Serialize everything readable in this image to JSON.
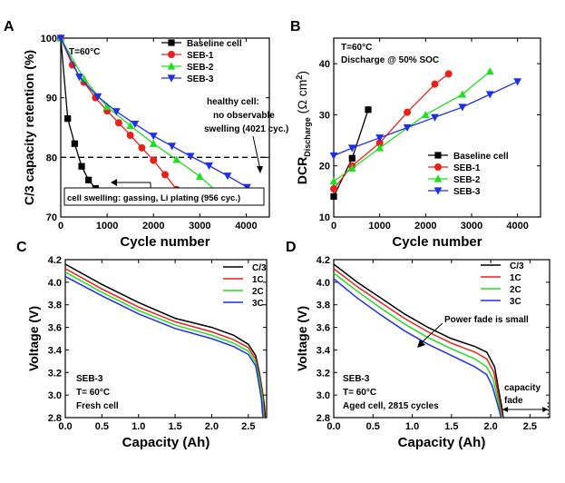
{
  "chart_data": [
    {
      "panel": "A",
      "type": "line",
      "xlabel": "Cycle number",
      "ylabel": "C/3 capacity retention (%)",
      "xlim": [
        0,
        4500
      ],
      "ylim": [
        70,
        100
      ],
      "xticks": [
        0,
        1000,
        2000,
        3000,
        4000
      ],
      "yticks": [
        70,
        80,
        90,
        100
      ],
      "reference_line": 80,
      "legend_position": "top-right",
      "annotations": [
        "T=60°C",
        "healthy cell:",
        "no observable",
        "swelling (4021 cyc.)",
        "cell swelling: gassing, Li plating (956 cyc.)"
      ],
      "series": [
        {
          "name": "Baseline cell",
          "color": "#000000",
          "marker": "square",
          "x": [
            0,
            150,
            300,
            450,
            600,
            750,
            900,
            956
          ],
          "y": [
            100,
            86.5,
            82.3,
            78.5,
            76.2,
            74.8,
            74.0,
            74.0
          ]
        },
        {
          "name": "SEB-1",
          "color": "#e8211b",
          "marker": "circle",
          "x": [
            0,
            250,
            500,
            750,
            1000,
            1250,
            1500,
            1750,
            2000,
            2250,
            2500
          ],
          "y": [
            100,
            95.5,
            92.6,
            90,
            87.8,
            85.8,
            83.7,
            81.6,
            79.5,
            77.1,
            74.6
          ]
        },
        {
          "name": "SEB-2",
          "color": "#22dd22",
          "marker": "triangle-up",
          "x": [
            0,
            500,
            1000,
            1500,
            2000,
            2500,
            3000,
            3400
          ],
          "y": [
            100,
            93.2,
            88.5,
            85.3,
            82.3,
            79.6,
            76.8,
            74.0
          ]
        },
        {
          "name": "SEB-3",
          "color": "#1f2fe6",
          "marker": "triangle-down",
          "x": [
            0,
            400,
            800,
            1200,
            1600,
            2000,
            2400,
            2800,
            3200,
            3600,
            4021
          ],
          "y": [
            100,
            93.5,
            90.2,
            87.7,
            85.6,
            83.6,
            81.9,
            80.2,
            78.6,
            76.9,
            75.0
          ]
        }
      ]
    },
    {
      "panel": "B",
      "type": "line",
      "xlabel": "Cycle number",
      "ylabel_main": "DCR",
      "ylabel_sub": "Discharge",
      "ylabel_unit": "(Ω cm",
      "ylabel_sup": "2",
      "ylabel_close": ")",
      "xlim": [
        0,
        4500
      ],
      "ylim": [
        10,
        45
      ],
      "xticks": [
        0,
        1000,
        2000,
        3000,
        4000
      ],
      "yticks": [
        10,
        20,
        30,
        40
      ],
      "legend_position": "bottom-right",
      "annotations": [
        "T=60°C",
        "Discharge @ 50% SOC"
      ],
      "series": [
        {
          "name": "Baseline cell",
          "color": "#000000",
          "marker": "square",
          "x": [
            0,
            400,
            750
          ],
          "y": [
            14,
            21.5,
            31
          ]
        },
        {
          "name": "SEB-1",
          "color": "#e8211b",
          "marker": "circle",
          "x": [
            0,
            400,
            1000,
            1600,
            2200,
            2500
          ],
          "y": [
            15.5,
            20,
            24.5,
            30.5,
            36,
            38
          ]
        },
        {
          "name": "SEB-2",
          "color": "#22dd22",
          "marker": "triangle-up",
          "x": [
            0,
            400,
            1000,
            2000,
            2800,
            3400
          ],
          "y": [
            17,
            19.5,
            23.5,
            30,
            34,
            38.5
          ]
        },
        {
          "name": "SEB-3",
          "color": "#1f2fe6",
          "marker": "triangle-down",
          "x": [
            0,
            400,
            1000,
            1600,
            2200,
            2800,
            3400,
            4000
          ],
          "y": [
            22,
            23.5,
            25.5,
            27.5,
            29.5,
            31.5,
            34,
            36.5
          ]
        }
      ]
    },
    {
      "panel": "C",
      "type": "line",
      "xlabel": "Capacity (Ah)",
      "ylabel": "Voltage (V)",
      "xlim": [
        0,
        2.75
      ],
      "ylim": [
        2.8,
        4.2
      ],
      "xticks": [
        0.0,
        0.5,
        1.0,
        1.5,
        2.0,
        2.5
      ],
      "xtick_labels": [
        "0.0",
        "0.5",
        "1.0",
        "1.5",
        "2.0",
        "2.5"
      ],
      "yticks": [
        2.8,
        3.0,
        3.2,
        3.4,
        3.6,
        3.8,
        4.0,
        4.2
      ],
      "ytick_labels": [
        "2.8",
        "3.0",
        "3.2",
        "3.4",
        "3.6",
        "3.8",
        "4.0",
        "4.2"
      ],
      "legend_position": "top-right",
      "annotations": [
        "SEB-3",
        "T= 60°C",
        "Fresh cell"
      ],
      "series": [
        {
          "name": "C/3",
          "color": "#000000",
          "x": [
            0,
            0.5,
            1.0,
            1.5,
            2.0,
            2.3,
            2.5,
            2.6,
            2.65,
            2.7,
            2.72,
            2.73
          ],
          "y": [
            4.16,
            3.98,
            3.82,
            3.68,
            3.6,
            3.53,
            3.45,
            3.35,
            3.2,
            3.0,
            2.9,
            2.8
          ]
        },
        {
          "name": "1C",
          "color": "#e8211b",
          "x": [
            0,
            0.5,
            1.0,
            1.5,
            2.0,
            2.3,
            2.5,
            2.6,
            2.65,
            2.7,
            2.71,
            2.72
          ],
          "y": [
            4.12,
            3.94,
            3.78,
            3.65,
            3.56,
            3.49,
            3.42,
            3.32,
            3.17,
            2.98,
            2.88,
            2.8
          ]
        },
        {
          "name": "2C",
          "color": "#22dd22",
          "x": [
            0,
            0.5,
            1.0,
            1.5,
            2.0,
            2.3,
            2.5,
            2.6,
            2.65,
            2.69,
            2.7,
            2.71
          ],
          "y": [
            4.09,
            3.91,
            3.75,
            3.62,
            3.53,
            3.46,
            3.39,
            3.29,
            3.14,
            2.97,
            2.87,
            2.8
          ]
        },
        {
          "name": "3C",
          "color": "#1f2fe6",
          "x": [
            0,
            0.5,
            1.0,
            1.5,
            2.0,
            2.3,
            2.5,
            2.6,
            2.64,
            2.68,
            2.69,
            2.7
          ],
          "y": [
            4.05,
            3.88,
            3.72,
            3.59,
            3.5,
            3.43,
            3.36,
            3.26,
            3.12,
            2.96,
            2.86,
            2.8
          ]
        }
      ]
    },
    {
      "panel": "D",
      "type": "line",
      "xlabel": "Capacity (Ah)",
      "ylabel": "Voltage (V)",
      "xlim": [
        0,
        2.75
      ],
      "ylim": [
        2.8,
        4.2
      ],
      "xticks": [
        0.0,
        0.5,
        1.0,
        1.5,
        2.0,
        2.5
      ],
      "xtick_labels": [
        "0.0",
        "0.5",
        "1.0",
        "1.5",
        "2.0",
        "2.5"
      ],
      "yticks": [
        2.8,
        3.0,
        3.2,
        3.4,
        3.6,
        3.8,
        4.0,
        4.2
      ],
      "ytick_labels": [
        "2.8",
        "3.0",
        "3.2",
        "3.4",
        "3.6",
        "3.8",
        "4.0",
        "4.2"
      ],
      "legend_position": "top-right",
      "annotations": [
        "SEB-3",
        "T= 60°C",
        "Aged cell, 2815 cycles",
        "Power fade is small",
        "capacity",
        "fade"
      ],
      "capacity_fade_range": [
        2.15,
        2.73
      ],
      "series": [
        {
          "name": "C/3",
          "color": "#000000",
          "x": [
            0,
            0.3,
            0.6,
            0.9,
            1.2,
            1.5,
            1.8,
            1.95,
            2.05,
            2.1,
            2.14,
            2.16
          ],
          "y": [
            4.16,
            4.0,
            3.86,
            3.72,
            3.6,
            3.5,
            3.43,
            3.38,
            3.25,
            3.05,
            2.9,
            2.8
          ]
        },
        {
          "name": "1C",
          "color": "#e8211b",
          "x": [
            0,
            0.3,
            0.6,
            0.9,
            1.2,
            1.5,
            1.8,
            1.95,
            2.04,
            2.09,
            2.13,
            2.15
          ],
          "y": [
            4.12,
            3.96,
            3.82,
            3.68,
            3.56,
            3.46,
            3.38,
            3.32,
            3.2,
            3.02,
            2.88,
            2.8
          ]
        },
        {
          "name": "2C",
          "color": "#22dd22",
          "x": [
            0,
            0.3,
            0.6,
            0.9,
            1.2,
            1.5,
            1.8,
            1.95,
            2.03,
            2.08,
            2.12,
            2.14
          ],
          "y": [
            4.08,
            3.92,
            3.77,
            3.63,
            3.51,
            3.41,
            3.32,
            3.25,
            3.14,
            2.99,
            2.87,
            2.8
          ]
        },
        {
          "name": "3C",
          "color": "#1f2fe6",
          "x": [
            0,
            0.3,
            0.6,
            0.9,
            1.2,
            1.5,
            1.8,
            1.95,
            2.02,
            2.07,
            2.11,
            2.13
          ],
          "y": [
            4.03,
            3.86,
            3.71,
            3.57,
            3.45,
            3.35,
            3.25,
            3.18,
            3.08,
            2.96,
            2.86,
            2.8
          ]
        }
      ]
    }
  ]
}
